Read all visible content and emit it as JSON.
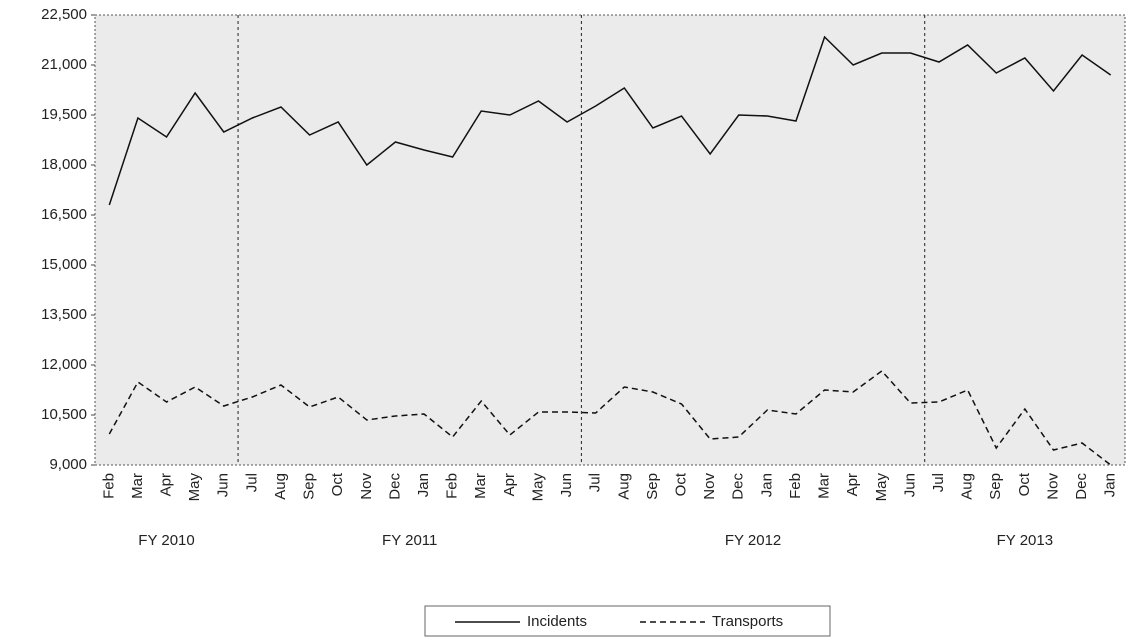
{
  "chart_data": {
    "type": "line",
    "groups": [
      {
        "label": "FY 2010",
        "categories": [
          "Feb",
          "Mar",
          "Apr",
          "May",
          "Jun"
        ]
      },
      {
        "label": "FY 2011",
        "categories": [
          "Jul",
          "Aug",
          "Sep",
          "Oct",
          "Nov",
          "Dec",
          "Jan",
          "Feb",
          "Mar",
          "Apr",
          "May",
          "Jun"
        ]
      },
      {
        "label": "FY 2012",
        "categories": [
          "Jul",
          "Aug",
          "Sep",
          "Oct",
          "Nov",
          "Dec",
          "Jan",
          "Feb",
          "Mar",
          "Apr",
          "May",
          "Jun"
        ]
      },
      {
        "label": "FY 2013",
        "categories": [
          "Jul",
          "Aug",
          "Sep",
          "Oct",
          "Nov",
          "Dec",
          "Jan"
        ]
      }
    ],
    "series": [
      {
        "name": "Incidents",
        "color": "#111111",
        "dash": "none",
        "values": [
          16800,
          19410,
          18840,
          20160,
          18990,
          19410,
          19740,
          18900,
          19290,
          18000,
          18690,
          18450,
          18240,
          19620,
          19500,
          19920,
          19290,
          19770,
          20310,
          19110,
          19470,
          18330,
          19500,
          19470,
          19320,
          21840,
          21000,
          21360,
          21360,
          21090,
          21600,
          20760,
          21210,
          20220,
          21300,
          20700
        ]
      },
      {
        "name": "Transports",
        "color": "#111111",
        "dash": "6 4",
        "values": [
          9930,
          11490,
          10890,
          11340,
          10770,
          11040,
          11400,
          10740,
          11040,
          10350,
          10470,
          10530,
          9840,
          10920,
          9900,
          10590,
          10590,
          10560,
          11340,
          11190,
          10830,
          9780,
          9840,
          10650,
          10530,
          11250,
          11190,
          11820,
          10860,
          10890,
          11250,
          9510,
          10680,
          9450,
          9660,
          9000
        ]
      }
    ],
    "ylim": [
      9000,
      22500
    ],
    "yticks": [
      {
        "value": 9000,
        "label": "9,000"
      },
      {
        "value": 10500,
        "label": "10,500"
      },
      {
        "value": 12000,
        "label": "12,000"
      },
      {
        "value": 13500,
        "label": "13,500"
      },
      {
        "value": 15000,
        "label": "15,000"
      },
      {
        "value": 16500,
        "label": "16,500"
      },
      {
        "value": 18000,
        "label": "18,000"
      },
      {
        "value": 19500,
        "label": "19,500"
      },
      {
        "value": 21000,
        "label": "21,000"
      },
      {
        "value": 22500,
        "label": "22,500"
      }
    ],
    "grid": false,
    "legend": "bottom"
  }
}
